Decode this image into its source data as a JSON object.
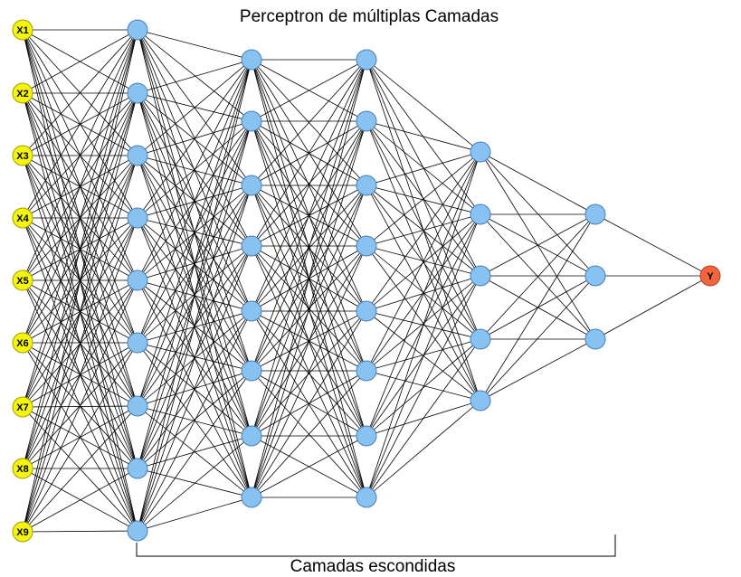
{
  "title": "Perceptron de múltiplas Camadas",
  "caption": "Camadas escondidas",
  "colors": {
    "input_fill": "#f5f50a",
    "input_stroke": "#a0a000",
    "hidden_fill": "#88c2f2",
    "hidden_stroke": "#4a7fb0",
    "output_fill": "#f0653c",
    "output_stroke": "#b04020",
    "edge": "#000000"
  },
  "layers": [
    {
      "role": "input",
      "labels": [
        "X1",
        "X2",
        "X3",
        "X4",
        "X5",
        "X6",
        "X7",
        "X8",
        "X9"
      ]
    },
    {
      "role": "hidden",
      "count": 9
    },
    {
      "role": "hidden",
      "count": 8
    },
    {
      "role": "hidden",
      "count": 8
    },
    {
      "role": "hidden",
      "count": 5
    },
    {
      "role": "hidden",
      "count": 3
    },
    {
      "role": "output",
      "labels": [
        "Y"
      ]
    }
  ]
}
